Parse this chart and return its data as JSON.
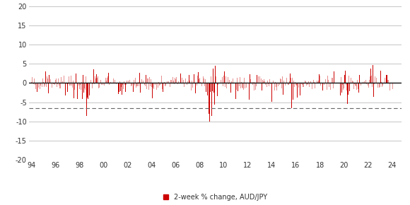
{
  "xlim": [
    1993.8,
    2024.8
  ],
  "ylim": [
    -20,
    20
  ],
  "yticks": [
    -20,
    -15,
    -10,
    -5,
    0,
    5,
    10,
    15,
    20
  ],
  "xticks": [
    1994,
    1996,
    1998,
    2000,
    2002,
    2004,
    2006,
    2008,
    2010,
    2012,
    2014,
    2016,
    2018,
    2020,
    2022,
    2024
  ],
  "xtick_labels": [
    "94",
    "96",
    "98",
    "00",
    "02",
    "04",
    "06",
    "08",
    "10",
    "12",
    "14",
    "16",
    "18",
    "20",
    "22",
    "24"
  ],
  "dashed_line_y": -6.5,
  "bar_color_dark": "#CC0000",
  "bar_color_light": "#E89090",
  "zero_line_color": "#111111",
  "grid_color": "#BBBBBB",
  "background_color": "#FFFFFF",
  "legend_label": "2-week % change, AUD/JPY",
  "legend_marker_color": "#CC0000",
  "seed": 42
}
